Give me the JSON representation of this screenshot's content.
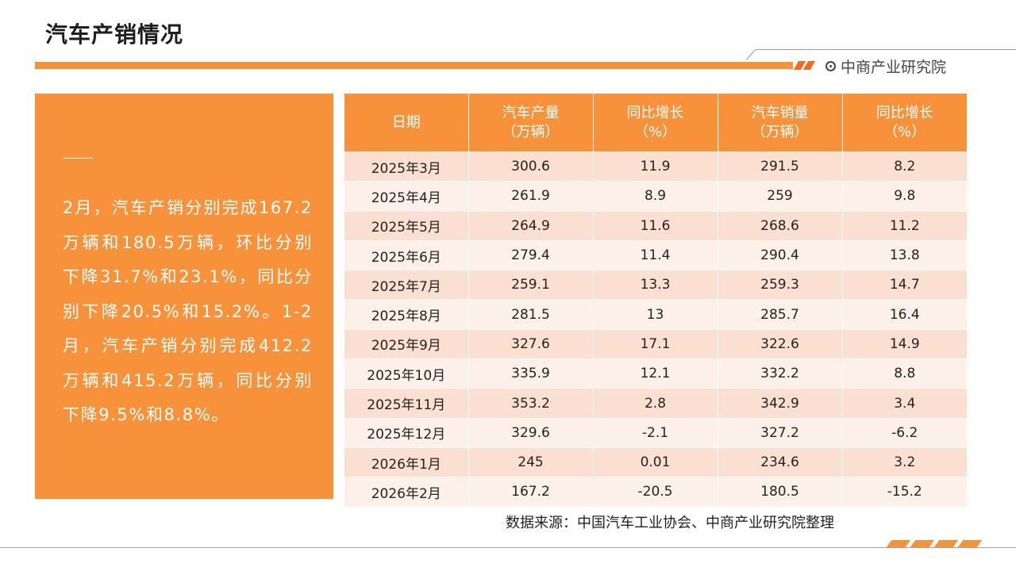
{
  "page": {
    "title": "汽车产销情况",
    "brand": "中商产业研究院"
  },
  "summary": {
    "text": "2月，汽车产销分别完成167.2万辆和180.5万辆，环比分别下降31.7%和23.1%，同比分别下降20.5%和15.2%。1-2月，汽车产销分别完成412.2万辆和415.2万辆，同比分别下降9.5%和8.8%。"
  },
  "table": {
    "headers": [
      {
        "line1": "日期",
        "line2": ""
      },
      {
        "line1": "汽车产量",
        "line2": "（万辆）"
      },
      {
        "line1": "同比增长",
        "line2": "（%）"
      },
      {
        "line1": "汽车销量",
        "line2": "（万辆）"
      },
      {
        "line1": "同比增长",
        "line2": "（%）"
      }
    ],
    "rows": [
      [
        "2025年3月",
        "300.6",
        "11.9",
        "291.5",
        "8.2"
      ],
      [
        "2025年4月",
        "261.9",
        "8.9",
        "259",
        "9.8"
      ],
      [
        "2025年5月",
        "264.9",
        "11.6",
        "268.6",
        "11.2"
      ],
      [
        "2025年6月",
        "279.4",
        "11.4",
        "290.4",
        "13.8"
      ],
      [
        "2025年7月",
        "259.1",
        "13.3",
        "259.3",
        "14.7"
      ],
      [
        "2025年8月",
        "281.5",
        "13",
        "285.7",
        "16.4"
      ],
      [
        "2025年9月",
        "327.6",
        "17.1",
        "322.6",
        "14.9"
      ],
      [
        "2025年10月",
        "335.9",
        "12.1",
        "332.2",
        "8.8"
      ],
      [
        "2025年11月",
        "353.2",
        "2.8",
        "342.9",
        "3.4"
      ],
      [
        "2025年12月",
        "329.6",
        "-2.1",
        "327.2",
        "-6.2"
      ],
      [
        "2026年1月",
        "245",
        "0.01",
        "234.6",
        "3.2"
      ],
      [
        "2026年2月",
        "167.2",
        "-20.5",
        "180.5",
        "-15.2"
      ]
    ]
  },
  "footer": {
    "source": "数据来源：中国汽车工业协会、中商产业研究院整理"
  },
  "colors": {
    "accent": "#f7923a",
    "row_odd": "#fbe0d1",
    "row_even": "#fdf0e8"
  }
}
